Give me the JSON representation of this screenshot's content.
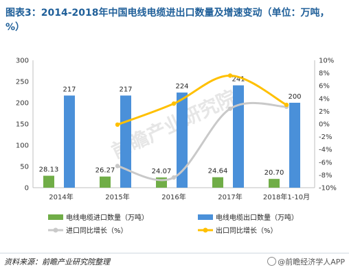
{
  "title": "图表3：2014-2018年中国电线电缆进出口数量及增速变动（单位：万吨，%）",
  "footer": {
    "source": "资料来源：前瞻产业研究院整理",
    "brand": "@前瞻经济学人APP"
  },
  "watermark": "前瞻产业研究院",
  "colors": {
    "import_bar": "#70ad47",
    "export_bar": "#4a90d9",
    "import_line": "#c9c9c9",
    "export_line": "#ffc000",
    "title": "#1f5f99"
  },
  "chart_data": {
    "type": "bar",
    "categories": [
      "2014年",
      "2015年",
      "2016年",
      "2017年",
      "2018年1-10月"
    ],
    "series": [
      {
        "name": "电线电缆进口数量（万吨）",
        "type": "bar",
        "axis": "left",
        "values": [
          28.13,
          26.27,
          24.07,
          24.64,
          20.7
        ],
        "labels": [
          "28.13",
          "26.27",
          "24.07",
          "24.64",
          "20.70"
        ]
      },
      {
        "name": "电线电缆出口数量（万吨）",
        "type": "bar",
        "axis": "left",
        "values": [
          217,
          217,
          224,
          241,
          200
        ],
        "labels": [
          "217",
          "217",
          "224",
          "241",
          "200"
        ]
      },
      {
        "name": "进口同比增长（%）",
        "type": "line",
        "axis": "right",
        "values": [
          null,
          -6.6,
          -8.4,
          2.4,
          2.7
        ]
      },
      {
        "name": "出口同比增长（%）",
        "type": "line",
        "axis": "right",
        "values": [
          null,
          -0.1,
          3.2,
          7.6,
          3.0
        ]
      }
    ],
    "y_left": {
      "min": 0,
      "max": 300,
      "step": 50,
      "ticks": [
        "0",
        "50",
        "100",
        "150",
        "200",
        "250",
        "300"
      ]
    },
    "y_right": {
      "min": -10,
      "max": 10,
      "step": 2,
      "ticks": [
        "-10%",
        "-8%",
        "-6%",
        "-4%",
        "-2%",
        "0%",
        "2%",
        "4%",
        "6%",
        "8%",
        "10%"
      ]
    },
    "grid": false,
    "legend": "bottom"
  }
}
